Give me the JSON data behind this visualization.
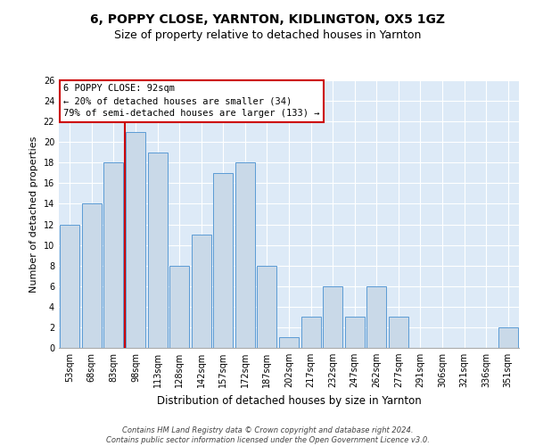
{
  "title": "6, POPPY CLOSE, YARNTON, KIDLINGTON, OX5 1GZ",
  "subtitle": "Size of property relative to detached houses in Yarnton",
  "xlabel": "Distribution of detached houses by size in Yarnton",
  "ylabel": "Number of detached properties",
  "categories": [
    "53sqm",
    "68sqm",
    "83sqm",
    "98sqm",
    "113sqm",
    "128sqm",
    "142sqm",
    "157sqm",
    "172sqm",
    "187sqm",
    "202sqm",
    "217sqm",
    "232sqm",
    "247sqm",
    "262sqm",
    "277sqm",
    "291sqm",
    "306sqm",
    "321sqm",
    "336sqm",
    "351sqm"
  ],
  "values": [
    12,
    14,
    18,
    21,
    19,
    8,
    11,
    17,
    18,
    8,
    1,
    3,
    6,
    3,
    6,
    3,
    0,
    0,
    0,
    0,
    2
  ],
  "bar_color": "#c9d9e8",
  "bar_edgecolor": "#5b9bd5",
  "vline_color": "#cc0000",
  "annotation_text": "6 POPPY CLOSE: 92sqm\n← 20% of detached houses are smaller (34)\n79% of semi-detached houses are larger (133) →",
  "annotation_box_color": "#ffffff",
  "annotation_box_edgecolor": "#cc0000",
  "ylim": [
    0,
    26
  ],
  "yticks": [
    0,
    2,
    4,
    6,
    8,
    10,
    12,
    14,
    16,
    18,
    20,
    22,
    24,
    26
  ],
  "footer": "Contains HM Land Registry data © Crown copyright and database right 2024.\nContains public sector information licensed under the Open Government Licence v3.0.",
  "background_color": "#ddeaf7",
  "grid_color": "#ffffff",
  "title_fontsize": 10,
  "subtitle_fontsize": 9,
  "tick_fontsize": 7,
  "ylabel_fontsize": 8,
  "xlabel_fontsize": 8.5,
  "annotation_fontsize": 7.5,
  "footer_fontsize": 6
}
